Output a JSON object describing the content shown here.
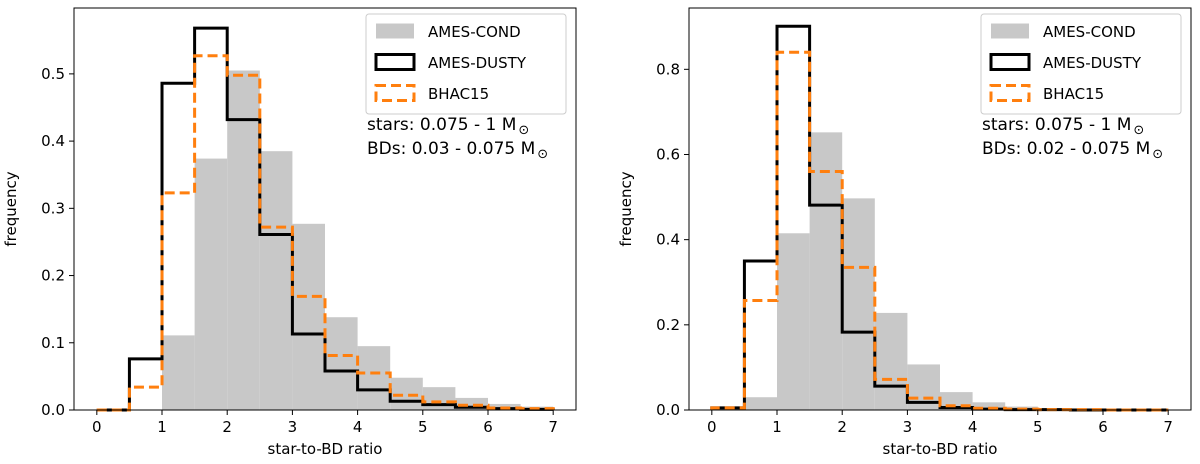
{
  "chart_data": [
    {
      "type": "bar",
      "xlabel": "star-to-BD ratio",
      "ylabel": "frequency",
      "xlim": [
        -0.35,
        7.35
      ],
      "ylim": [
        0,
        0.598
      ],
      "xticks": [
        0,
        1,
        2,
        3,
        4,
        5,
        6,
        7
      ],
      "yticks": [
        0.0,
        0.1,
        0.2,
        0.3,
        0.4,
        0.5
      ],
      "bin_edges": [
        0,
        0.5,
        1,
        1.5,
        2,
        2.5,
        3,
        3.5,
        4,
        4.5,
        5,
        5.5,
        6,
        6.5,
        7
      ],
      "series": [
        {
          "name": "AMES-COND",
          "style": "filled",
          "color": "#c8c8c8",
          "values": [
            0,
            0,
            0.111,
            0.374,
            0.505,
            0.385,
            0.277,
            0.138,
            0.095,
            0.048,
            0.034,
            0.018,
            0.009,
            0.005
          ]
        },
        {
          "name": "AMES-DUSTY",
          "style": "step",
          "color": "#000000",
          "values": [
            0,
            0.076,
            0.486,
            0.568,
            0.432,
            0.261,
            0.113,
            0.058,
            0.03,
            0.013,
            0.008,
            0.004,
            0.002,
            0.001
          ]
        },
        {
          "name": "BHAC15",
          "style": "dashed-step",
          "color": "#ff7f0e",
          "values": [
            0,
            0.034,
            0.323,
            0.527,
            0.498,
            0.272,
            0.169,
            0.081,
            0.055,
            0.022,
            0.012,
            0.007,
            0.003,
            0.002
          ]
        }
      ],
      "annotations": [
        "stars: 0.075 - 1 M",
        "BDs: 0.03 - 0.075 M"
      ],
      "annotation_symbol": "⊙",
      "legend": "top-right"
    },
    {
      "type": "bar",
      "xlabel": "star-to-BD ratio",
      "ylabel": "frequency",
      "xlim": [
        -0.35,
        7.35
      ],
      "ylim": [
        0,
        0.944
      ],
      "xticks": [
        0,
        1,
        2,
        3,
        4,
        5,
        6,
        7
      ],
      "yticks": [
        0.0,
        0.2,
        0.4,
        0.6,
        0.8
      ],
      "bin_edges": [
        0,
        0.5,
        1,
        1.5,
        2,
        2.5,
        3,
        3.5,
        4,
        4.5,
        5,
        5.5,
        6,
        6.5,
        7
      ],
      "series": [
        {
          "name": "AMES-COND",
          "style": "filled",
          "color": "#c8c8c8",
          "values": [
            0,
            0.03,
            0.415,
            0.652,
            0.497,
            0.228,
            0.107,
            0.042,
            0.018,
            0.008,
            0.004,
            0.002,
            0.001,
            0.001
          ]
        },
        {
          "name": "AMES-DUSTY",
          "style": "step",
          "color": "#000000",
          "values": [
            0.005,
            0.35,
            0.901,
            0.481,
            0.183,
            0.056,
            0.018,
            0.006,
            0.002,
            0.001,
            0.001,
            0,
            0,
            0
          ]
        },
        {
          "name": "BHAC15",
          "style": "dashed-step",
          "color": "#ff7f0e",
          "values": [
            0.005,
            0.257,
            0.84,
            0.56,
            0.335,
            0.072,
            0.028,
            0.01,
            0.004,
            0.002,
            0.001,
            0.001,
            0,
            0
          ]
        }
      ],
      "annotations": [
        "stars: 0.075 - 1 M",
        "BDs: 0.02 - 0.075 M"
      ],
      "annotation_symbol": "⊙",
      "legend": "top-right"
    }
  ]
}
